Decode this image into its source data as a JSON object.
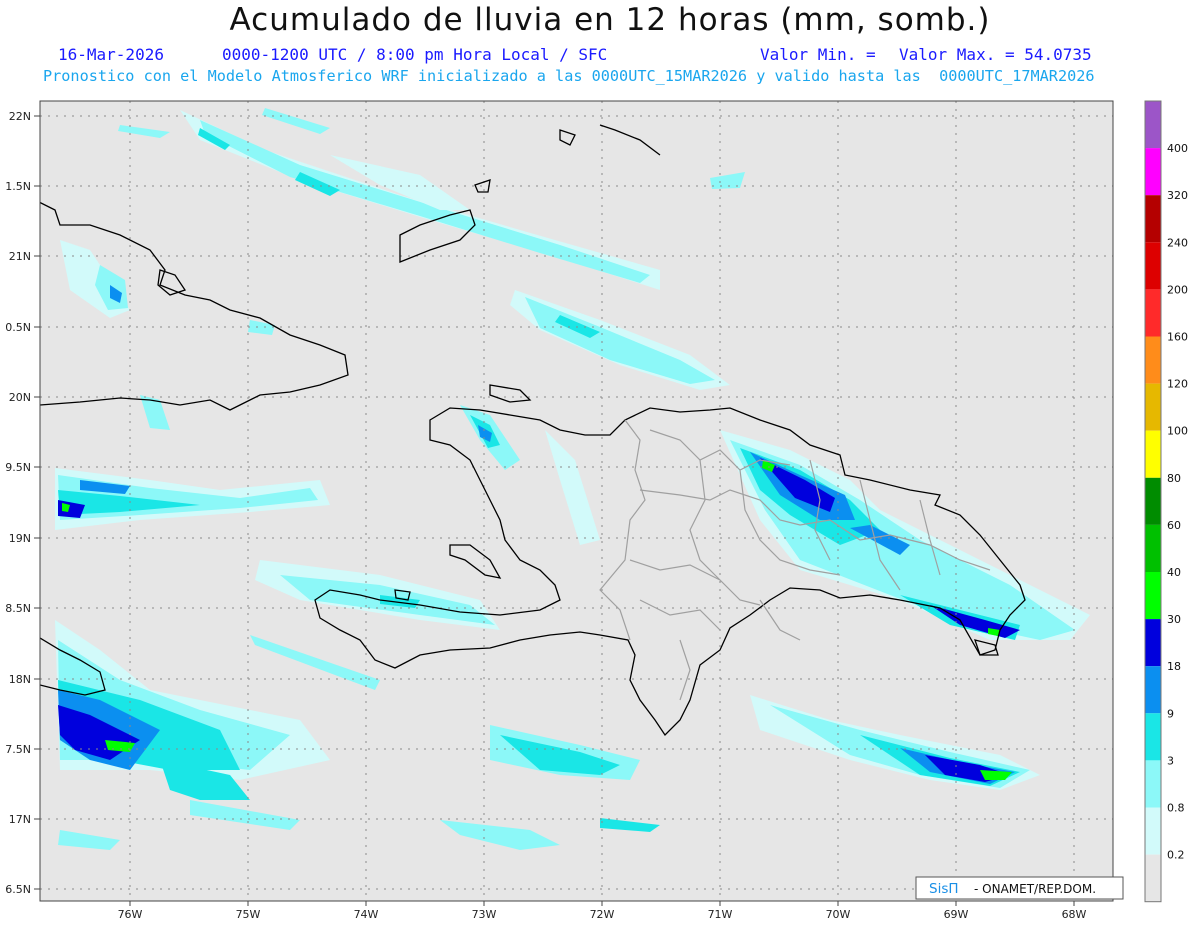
{
  "header": {
    "title": "Acumulado de lluvia en 12 horas (mm, somb.)",
    "date": "16-Mar-2026",
    "period": "0000-1200 UTC / 8:00 pm Hora Local / SFC",
    "min_label": "Valor Min. =",
    "max_label": "Valor Max. = 54.0735",
    "model_info": "Pronostico con el Modelo Atmosferico WRF inicializado a las 0000UTC_15MAR2026 y valido hasta las  0000UTC_17MAR2026"
  },
  "axes": {
    "lat_labels": [
      "22N",
      "1.5N",
      "21N",
      "0.5N",
      "20N",
      "9.5N",
      "19N",
      "8.5N",
      "18N",
      "7.5N",
      "17N",
      "6.5N"
    ],
    "lon_labels": [
      "76W",
      "75W",
      "74W",
      "73W",
      "72W",
      "71W",
      "70W",
      "69W",
      "68W"
    ]
  },
  "colorbar": {
    "labels": [
      "400",
      "320",
      "240",
      "200",
      "160",
      "120",
      "100",
      "80",
      "60",
      "40",
      "30",
      "18",
      "9",
      "3",
      "0.8",
      "0.2"
    ],
    "colors": [
      "#9c55c8",
      "#ff00ff",
      "#b40000",
      "#dd0000",
      "#ff2a2a",
      "#ff8c1a",
      "#e6b800",
      "#ffff00",
      "#008c00",
      "#00c000",
      "#00ff00",
      "#0000dd",
      "#0b8ff0",
      "#1ae6e6",
      "#8cf8f8",
      "#d2fafa",
      "#e6e6e6"
    ]
  },
  "credit": {
    "brand": "SisΠ",
    "text": "- ONAMET/REP.DOM."
  },
  "legend_colors": {
    "background": "#e6e6e6",
    "light_cyan": "#d2fafa",
    "cyan": "#8cf8f8",
    "mid_cyan": "#1ae6e6",
    "blue": "#0b8ff0",
    "dark_blue": "#0000dd",
    "green": "#00ff00",
    "coast": "#000000",
    "provinces": "#a0a0a0"
  }
}
